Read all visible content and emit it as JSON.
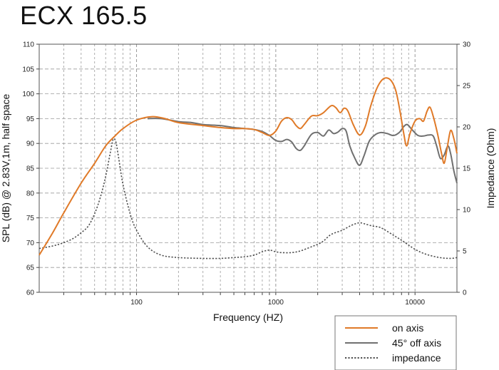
{
  "title": "ECX 165.5",
  "colors": {
    "on_axis": "#e07a28",
    "off_axis": "#707070",
    "impedance": "#505050",
    "grid": "#9a9a9a"
  },
  "chart_data": {
    "type": "line",
    "title": "ECX 165.5",
    "xlabel": "Frequency (HZ)",
    "ylabel": "SPL (dB) @ 2.83V,1m, half space",
    "y2label": "Impedance (Ohm)",
    "xscale": "log",
    "xlim": [
      20,
      20000
    ],
    "ylim": [
      60,
      110
    ],
    "y2lim": [
      0,
      30
    ],
    "grid": true,
    "x_tick_labels": [
      {
        "value": 100,
        "label": "100"
      },
      {
        "value": 1000,
        "label": "1000"
      },
      {
        "value": 10000,
        "label": "10000"
      }
    ],
    "y_ticks": [
      60,
      65,
      70,
      75,
      80,
      85,
      90,
      95,
      100,
      105,
      110
    ],
    "y2_ticks": [
      0,
      5,
      10,
      15,
      20,
      25,
      30
    ],
    "legend": {
      "placement": "bottom-right",
      "entries": [
        {
          "label": "on axis",
          "series": "on_axis"
        },
        {
          "label": "45° off axis",
          "series": "off_axis"
        },
        {
          "label": "impedance",
          "series": "impedance"
        }
      ]
    },
    "series": [
      {
        "name": "on axis",
        "axis": "left",
        "style": "solid",
        "color_key": "on_axis",
        "points": [
          [
            20,
            67.5
          ],
          [
            25,
            72
          ],
          [
            30,
            76
          ],
          [
            40,
            82
          ],
          [
            50,
            86
          ],
          [
            60,
            89.5
          ],
          [
            70,
            91.5
          ],
          [
            80,
            93
          ],
          [
            100,
            94.7
          ],
          [
            130,
            95.4
          ],
          [
            160,
            95
          ],
          [
            200,
            94.2
          ],
          [
            300,
            93.6
          ],
          [
            400,
            93.2
          ],
          [
            500,
            93
          ],
          [
            600,
            93
          ],
          [
            700,
            92.8
          ],
          [
            800,
            92.2
          ],
          [
            900,
            91.6
          ],
          [
            1000,
            92.5
          ],
          [
            1100,
            94.5
          ],
          [
            1200,
            95.2
          ],
          [
            1300,
            94.8
          ],
          [
            1400,
            93.6
          ],
          [
            1500,
            93
          ],
          [
            1600,
            93.8
          ],
          [
            1800,
            95.5
          ],
          [
            2000,
            95.6
          ],
          [
            2200,
            96.2
          ],
          [
            2500,
            97.6
          ],
          [
            2700,
            97.2
          ],
          [
            2900,
            96.2
          ],
          [
            3100,
            97.1
          ],
          [
            3300,
            96.5
          ],
          [
            3600,
            93.8
          ],
          [
            4000,
            91.7
          ],
          [
            4400,
            93.5
          ],
          [
            4800,
            97.5
          ],
          [
            5300,
            101
          ],
          [
            5800,
            102.8
          ],
          [
            6300,
            103.2
          ],
          [
            6800,
            102.5
          ],
          [
            7300,
            100.5
          ],
          [
            7800,
            96.5
          ],
          [
            8300,
            92
          ],
          [
            8700,
            89.5
          ],
          [
            9200,
            92
          ],
          [
            10000,
            94.5
          ],
          [
            10800,
            95
          ],
          [
            11500,
            94.5
          ],
          [
            12200,
            96.5
          ],
          [
            12800,
            97.3
          ],
          [
            13500,
            95.5
          ],
          [
            14500,
            92
          ],
          [
            15500,
            88
          ],
          [
            16200,
            86
          ],
          [
            17000,
            89
          ],
          [
            18000,
            92.6
          ],
          [
            19000,
            91
          ],
          [
            20000,
            88
          ]
        ]
      },
      {
        "name": "45° off axis",
        "axis": "left",
        "style": "solid",
        "color_key": "off_axis",
        "points": [
          [
            120,
            95
          ],
          [
            150,
            95
          ],
          [
            200,
            94.4
          ],
          [
            250,
            94.2
          ],
          [
            300,
            93.8
          ],
          [
            400,
            93.6
          ],
          [
            500,
            93.2
          ],
          [
            600,
            93
          ],
          [
            700,
            92.8
          ],
          [
            800,
            92.4
          ],
          [
            900,
            91.6
          ],
          [
            1000,
            90.6
          ],
          [
            1100,
            90.4
          ],
          [
            1200,
            90.8
          ],
          [
            1300,
            90.3
          ],
          [
            1400,
            89
          ],
          [
            1500,
            88.6
          ],
          [
            1600,
            89.5
          ],
          [
            1800,
            91.8
          ],
          [
            2000,
            92.2
          ],
          [
            2200,
            91.5
          ],
          [
            2400,
            92.7
          ],
          [
            2600,
            92
          ],
          [
            2800,
            92.3
          ],
          [
            3000,
            93
          ],
          [
            3200,
            92.5
          ],
          [
            3400,
            89.5
          ],
          [
            3700,
            87
          ],
          [
            4000,
            85.6
          ],
          [
            4300,
            87.5
          ],
          [
            4700,
            90.5
          ],
          [
            5200,
            91.8
          ],
          [
            5700,
            92.2
          ],
          [
            6300,
            92
          ],
          [
            7000,
            91.6
          ],
          [
            7700,
            92.2
          ],
          [
            8300,
            93.4
          ],
          [
            8800,
            93.8
          ],
          [
            9500,
            92.8
          ],
          [
            10500,
            91.6
          ],
          [
            11500,
            91.5
          ],
          [
            12500,
            91.7
          ],
          [
            13500,
            91.5
          ],
          [
            14300,
            89.5
          ],
          [
            15200,
            87
          ],
          [
            16200,
            87.7
          ],
          [
            17200,
            89.5
          ],
          [
            18000,
            88
          ],
          [
            19000,
            84.5
          ],
          [
            20000,
            82
          ]
        ]
      },
      {
        "name": "impedance",
        "axis": "right",
        "style": "dotted",
        "color_key": "impedance",
        "points": [
          [
            20,
            5.3
          ],
          [
            25,
            5.6
          ],
          [
            30,
            6
          ],
          [
            35,
            6.5
          ],
          [
            40,
            7.2
          ],
          [
            45,
            8
          ],
          [
            50,
            9.5
          ],
          [
            55,
            11.5
          ],
          [
            60,
            14
          ],
          [
            65,
            17
          ],
          [
            68,
            18.5
          ],
          [
            71,
            18.2
          ],
          [
            74,
            16.5
          ],
          [
            80,
            13
          ],
          [
            90,
            9.5
          ],
          [
            100,
            7.5
          ],
          [
            120,
            5.5
          ],
          [
            150,
            4.5
          ],
          [
            200,
            4.2
          ],
          [
            300,
            4.1
          ],
          [
            400,
            4.1
          ],
          [
            500,
            4.2
          ],
          [
            600,
            4.3
          ],
          [
            700,
            4.5
          ],
          [
            800,
            4.9
          ],
          [
            900,
            5.1
          ],
          [
            1000,
            4.9
          ],
          [
            1100,
            4.8
          ],
          [
            1300,
            4.8
          ],
          [
            1500,
            5
          ],
          [
            1800,
            5.5
          ],
          [
            2000,
            5.8
          ],
          [
            2200,
            6.2
          ],
          [
            2500,
            7
          ],
          [
            3000,
            7.5
          ],
          [
            3500,
            8.1
          ],
          [
            4000,
            8.4
          ],
          [
            4500,
            8.2
          ],
          [
            5000,
            8
          ],
          [
            5500,
            7.9
          ],
          [
            6000,
            7.6
          ],
          [
            7000,
            6.9
          ],
          [
            8000,
            6.3
          ],
          [
            10000,
            5.2
          ],
          [
            12000,
            4.6
          ],
          [
            15000,
            4.2
          ],
          [
            18000,
            4.1
          ],
          [
            20000,
            4.2
          ]
        ]
      }
    ]
  }
}
